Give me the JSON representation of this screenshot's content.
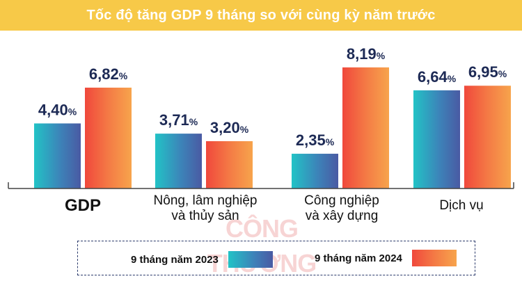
{
  "title": "Tốc độ tăng GDP 9 tháng so với cùng kỳ năm trước",
  "watermark": "CÔNG THƯƠNG",
  "colors": {
    "series_2023_start": "#22c3c6",
    "series_2023_end": "#4a5aa3",
    "series_2024_start": "#f0483c",
    "series_2024_end": "#f7a44c",
    "title_bar": "#f7c948",
    "axis": "#444444"
  },
  "chart_data": {
    "type": "bar",
    "title": "Tốc độ tăng GDP 9 tháng so với cùng kỳ năm trước",
    "xlabel": "",
    "ylabel": "",
    "ylim": [
      0,
      9
    ],
    "grid": false,
    "legend_position": "bottom",
    "categories": [
      "GDP",
      "Nông, lâm nghiệp và thủy sản",
      "Công nghiệp và xây dựng",
      "Dịch vụ"
    ],
    "category_lines": [
      [
        "GDP"
      ],
      [
        "Nông, lâm nghiệp",
        "và thủy sản"
      ],
      [
        "Công nghiệp",
        "và xây dựng"
      ],
      [
        "Dịch vụ"
      ]
    ],
    "series": [
      {
        "name": "9 tháng năm 2023",
        "values": [
          4.4,
          3.71,
          2.35,
          6.64
        ],
        "labels": [
          "4,40",
          "3,71",
          "2,35",
          "6,64"
        ]
      },
      {
        "name": "9 tháng năm 2024",
        "values": [
          6.82,
          3.2,
          8.19,
          6.95
        ],
        "labels": [
          "6,82",
          "3,20",
          "8,19",
          "6,95"
        ]
      }
    ],
    "unit": "%"
  }
}
